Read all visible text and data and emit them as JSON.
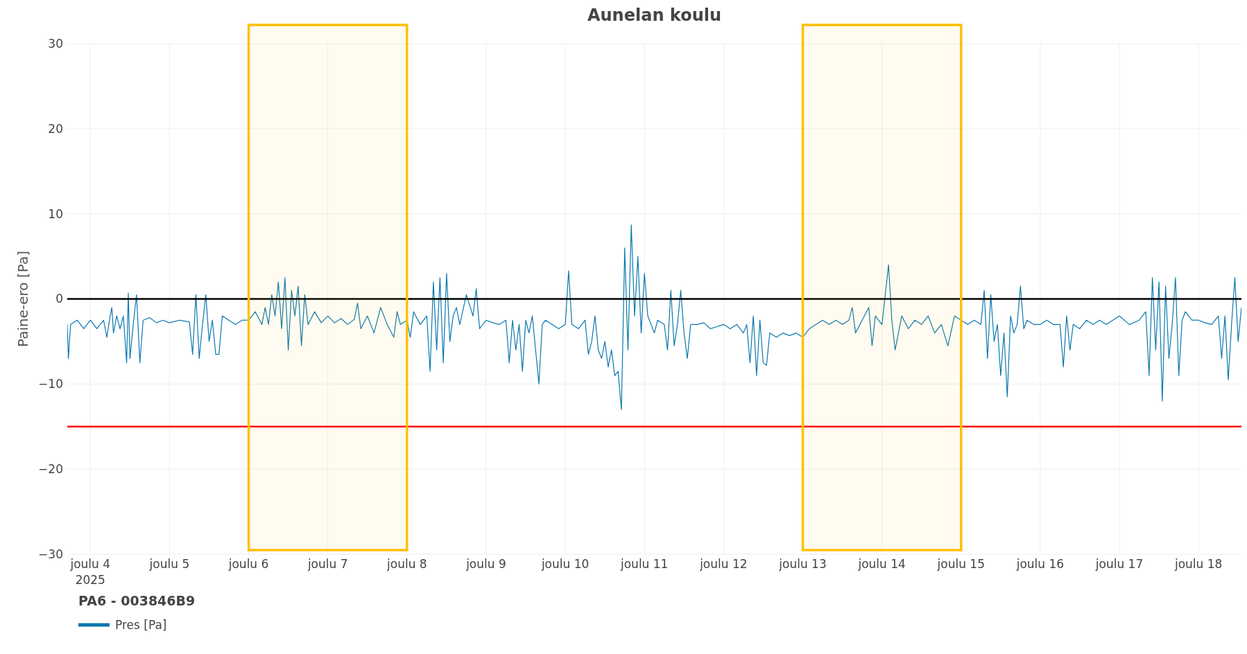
{
  "chart_data": {
    "type": "line",
    "title": "Aunelan koulu",
    "ylabel": "Paine-ero [Pa]",
    "legend_title": "PA6 - 003846B9",
    "legend": "bottom left",
    "grid": true,
    "xlim": [
      "2025-12-03T17:00",
      "2025-12-18T13:00"
    ],
    "xticks": [
      {
        "value": "2025-12-04",
        "label": "joulu 4\n2025"
      },
      {
        "value": "2025-12-05",
        "label": "joulu 5"
      },
      {
        "value": "2025-12-06",
        "label": "joulu 6"
      },
      {
        "value": "2025-12-07",
        "label": "joulu 7"
      },
      {
        "value": "2025-12-08",
        "label": "joulu 8"
      },
      {
        "value": "2025-12-09",
        "label": "joulu 9"
      },
      {
        "value": "2025-12-10",
        "label": "joulu 10"
      },
      {
        "value": "2025-12-11",
        "label": "joulu 11"
      },
      {
        "value": "2025-12-12",
        "label": "joulu 12"
      },
      {
        "value": "2025-12-13",
        "label": "joulu 13"
      },
      {
        "value": "2025-12-14",
        "label": "joulu 14"
      },
      {
        "value": "2025-12-15",
        "label": "joulu 15"
      },
      {
        "value": "2025-12-16",
        "label": "joulu 16"
      },
      {
        "value": "2025-12-17",
        "label": "joulu 17"
      },
      {
        "value": "2025-12-18",
        "label": "joulu 18"
      }
    ],
    "ylim": [
      -30,
      30
    ],
    "yticks": [
      -30,
      -20,
      -10,
      0,
      10,
      20,
      30
    ],
    "ref_lines": [
      {
        "axis": "y",
        "value": 0,
        "color": "#000000"
      },
      {
        "axis": "y",
        "value": -15,
        "color": "#ff0000"
      }
    ],
    "bands": [
      {
        "axis": "x",
        "from": "2025-12-06",
        "to": "2025-12-08",
        "color": "#ffc000"
      },
      {
        "axis": "x",
        "from": "2025-12-13",
        "to": "2025-12-15",
        "color": "#ffc000"
      }
    ],
    "series": [
      {
        "name": "Pres [Pa]",
        "color": "#0b78ad",
        "x": [
          "2025-12-03T17:00",
          "2025-12-03T17:20",
          "2025-12-03T18:00",
          "2025-12-03T20:00",
          "2025-12-03T22:00",
          "2025-12-04T00:00",
          "2025-12-04T02:00",
          "2025-12-04T04:00",
          "2025-12-04T05:00",
          "2025-12-04T06:00",
          "2025-12-04T06:30",
          "2025-12-04T07:00",
          "2025-12-04T08:00",
          "2025-12-04T09:00",
          "2025-12-04T10:00",
          "2025-12-04T11:00",
          "2025-12-04T11:30",
          "2025-12-04T12:00",
          "2025-12-04T13:00",
          "2025-12-04T14:00",
          "2025-12-04T15:00",
          "2025-12-04T16:00",
          "2025-12-04T18:00",
          "2025-12-04T20:00",
          "2025-12-04T22:00",
          "2025-12-05T00:00",
          "2025-12-05T03:00",
          "2025-12-05T06:00",
          "2025-12-05T07:00",
          "2025-12-05T08:00",
          "2025-12-05T09:00",
          "2025-12-05T10:00",
          "2025-12-05T11:00",
          "2025-12-05T12:00",
          "2025-12-05T13:00",
          "2025-12-05T14:00",
          "2025-12-05T15:00",
          "2025-12-05T16:00",
          "2025-12-05T18:00",
          "2025-12-05T20:00",
          "2025-12-05T22:00",
          "2025-12-06T00:00",
          "2025-12-06T02:00",
          "2025-12-06T04:00",
          "2025-12-06T05:00",
          "2025-12-06T06:00",
          "2025-12-06T07:00",
          "2025-12-06T08:00",
          "2025-12-06T09:00",
          "2025-12-06T10:00",
          "2025-12-06T11:00",
          "2025-12-06T12:00",
          "2025-12-06T13:00",
          "2025-12-06T14:00",
          "2025-12-06T15:00",
          "2025-12-06T16:00",
          "2025-12-06T17:00",
          "2025-12-06T18:00",
          "2025-12-06T20:00",
          "2025-12-06T22:00",
          "2025-12-07T00:00",
          "2025-12-07T02:00",
          "2025-12-07T04:00",
          "2025-12-07T06:00",
          "2025-12-07T08:00",
          "2025-12-07T09:00",
          "2025-12-07T10:00",
          "2025-12-07T12:00",
          "2025-12-07T14:00",
          "2025-12-07T16:00",
          "2025-12-07T18:00",
          "2025-12-07T20:00",
          "2025-12-07T21:00",
          "2025-12-07T22:00",
          "2025-12-08T00:00",
          "2025-12-08T01:00",
          "2025-12-08T02:00",
          "2025-12-08T04:00",
          "2025-12-08T06:00",
          "2025-12-08T07:00",
          "2025-12-08T08:00",
          "2025-12-08T09:00",
          "2025-12-08T10:00",
          "2025-12-08T11:00",
          "2025-12-08T12:00",
          "2025-12-08T13:00",
          "2025-12-08T14:00",
          "2025-12-08T15:00",
          "2025-12-08T16:00",
          "2025-12-08T18:00",
          "2025-12-08T20:00",
          "2025-12-08T21:00",
          "2025-12-08T22:00",
          "2025-12-09T00:00",
          "2025-12-09T02:00",
          "2025-12-09T04:00",
          "2025-12-09T06:00",
          "2025-12-09T07:00",
          "2025-12-09T08:00",
          "2025-12-09T09:00",
          "2025-12-09T10:00",
          "2025-12-09T11:00",
          "2025-12-09T12:00",
          "2025-12-09T13:00",
          "2025-12-09T14:00",
          "2025-12-09T16:00",
          "2025-12-09T17:00",
          "2025-12-09T18:00",
          "2025-12-09T20:00",
          "2025-12-09T22:00",
          "2025-12-10T00:00",
          "2025-12-10T01:00",
          "2025-12-10T02:00",
          "2025-12-10T04:00",
          "2025-12-10T06:00",
          "2025-12-10T07:00",
          "2025-12-10T08:00",
          "2025-12-10T09:00",
          "2025-12-10T10:00",
          "2025-12-10T11:00",
          "2025-12-10T12:00",
          "2025-12-10T13:00",
          "2025-12-10T14:00",
          "2025-12-10T15:00",
          "2025-12-10T16:00",
          "2025-12-10T17:00",
          "2025-12-10T17:30",
          "2025-12-10T18:00",
          "2025-12-10T19:00",
          "2025-12-10T20:00",
          "2025-12-10T21:00",
          "2025-12-10T22:00",
          "2025-12-10T23:00",
          "2025-12-11T00:00",
          "2025-12-11T01:00",
          "2025-12-11T02:00",
          "2025-12-11T03:00",
          "2025-12-11T04:00",
          "2025-12-11T06:00",
          "2025-12-11T07:00",
          "2025-12-11T08:00",
          "2025-12-11T09:00",
          "2025-12-11T10:00",
          "2025-12-11T11:00",
          "2025-12-11T12:00",
          "2025-12-11T13:00",
          "2025-12-11T14:00",
          "2025-12-11T16:00",
          "2025-12-11T18:00",
          "2025-12-11T20:00",
          "2025-12-12T00:00",
          "2025-12-12T02:00",
          "2025-12-12T04:00",
          "2025-12-12T06:00",
          "2025-12-12T07:00",
          "2025-12-12T08:00",
          "2025-12-12T09:00",
          "2025-12-12T10:00",
          "2025-12-12T11:00",
          "2025-12-12T12:00",
          "2025-12-12T13:00",
          "2025-12-12T14:00",
          "2025-12-12T16:00",
          "2025-12-12T18:00",
          "2025-12-12T20:00",
          "2025-12-12T22:00",
          "2025-12-13T00:00",
          "2025-12-13T02:00",
          "2025-12-13T04:00",
          "2025-12-13T06:00",
          "2025-12-13T08:00",
          "2025-12-13T10:00",
          "2025-12-13T12:00",
          "2025-12-13T14:00",
          "2025-12-13T15:00",
          "2025-12-13T16:00",
          "2025-12-13T18:00",
          "2025-12-13T20:00",
          "2025-12-13T21:00",
          "2025-12-13T22:00",
          "2025-12-14T00:00",
          "2025-12-14T02:00",
          "2025-12-14T03:00",
          "2025-12-14T04:00",
          "2025-12-14T06:00",
          "2025-12-14T08:00",
          "2025-12-14T10:00",
          "2025-12-14T12:00",
          "2025-12-14T14:00",
          "2025-12-14T16:00",
          "2025-12-14T18:00",
          "2025-12-14T20:00",
          "2025-12-14T22:00",
          "2025-12-15T00:00",
          "2025-12-15T02:00",
          "2025-12-15T04:00",
          "2025-12-15T06:00",
          "2025-12-15T07:00",
          "2025-12-15T08:00",
          "2025-12-15T09:00",
          "2025-12-15T10:00",
          "2025-12-15T11:00",
          "2025-12-15T12:00",
          "2025-12-15T13:00",
          "2025-12-15T14:00",
          "2025-12-15T15:00",
          "2025-12-15T16:00",
          "2025-12-15T17:00",
          "2025-12-15T18:00",
          "2025-12-15T19:00",
          "2025-12-15T20:00",
          "2025-12-15T22:00",
          "2025-12-16T00:00",
          "2025-12-16T02:00",
          "2025-12-16T04:00",
          "2025-12-16T06:00",
          "2025-12-16T07:00",
          "2025-12-16T08:00",
          "2025-12-16T09:00",
          "2025-12-16T10:00",
          "2025-12-16T12:00",
          "2025-12-16T14:00",
          "2025-12-16T16:00",
          "2025-12-16T18:00",
          "2025-12-16T20:00",
          "2025-12-16T22:00",
          "2025-12-17T00:00",
          "2025-12-17T03:00",
          "2025-12-17T06:00",
          "2025-12-17T08:00",
          "2025-12-17T09:00",
          "2025-12-17T10:00",
          "2025-12-17T11:00",
          "2025-12-17T12:00",
          "2025-12-17T13:00",
          "2025-12-17T14:00",
          "2025-12-17T15:00",
          "2025-12-17T16:00",
          "2025-12-17T17:00",
          "2025-12-17T18:00",
          "2025-12-17T19:00",
          "2025-12-17T20:00",
          "2025-12-17T22:00",
          "2025-12-18T00:00",
          "2025-12-18T02:00",
          "2025-12-18T04:00",
          "2025-12-18T06:00",
          "2025-12-18T07:00",
          "2025-12-18T08:00",
          "2025-12-18T09:00",
          "2025-12-18T10:00",
          "2025-12-18T11:00",
          "2025-12-18T12:00",
          "2025-12-18T13:00"
        ],
        "values": [
          -3,
          -7,
          -3,
          -2.5,
          -3.5,
          -2.5,
          -3.5,
          -2.5,
          -4.5,
          -2,
          -1,
          -4,
          -2,
          -3.5,
          -2,
          -7.5,
          0.7,
          -7,
          -3,
          0.5,
          -7.5,
          -2.5,
          -2.2,
          -2.8,
          -2.5,
          -2.8,
          -2.5,
          -2.7,
          -6.5,
          0.5,
          -7,
          -3,
          0.5,
          -5,
          -2.5,
          -6.5,
          -6.5,
          -2,
          -2.5,
          -3,
          -2.5,
          -2.5,
          -1.5,
          -3,
          -1,
          -3,
          0.5,
          -2,
          2,
          -3.5,
          2.5,
          -6,
          1,
          -2,
          1.5,
          -5.5,
          0.5,
          -3,
          -1.5,
          -2.8,
          -2,
          -2.8,
          -2.3,
          -3,
          -2.4,
          -0.5,
          -3.5,
          -2,
          -4,
          -1,
          -3,
          -4.5,
          -1.5,
          -3,
          -2.5,
          -4.5,
          -1.5,
          -3,
          -2,
          -8.5,
          2,
          -6,
          2.5,
          -7.5,
          3,
          -5,
          -2,
          -1,
          -3,
          0.5,
          -2,
          1.2,
          -3.5,
          -2.5,
          -2.8,
          -3,
          -2.5,
          -7.5,
          -2.5,
          -6,
          -3,
          -8.5,
          -2.5,
          -4,
          -2,
          -10,
          -3,
          -2.5,
          -3,
          -3.5,
          -3,
          3.3,
          -3,
          -3.5,
          -2.5,
          -6.5,
          -5,
          -2,
          -6,
          -7,
          -5,
          -8,
          -6,
          -9,
          -8.5,
          -13,
          -4,
          6,
          -6,
          8.7,
          -2,
          5,
          -4,
          3,
          -2,
          -3,
          -4,
          -2.5,
          -3,
          -6,
          1,
          -5.5,
          -3,
          1,
          -4,
          -7,
          -3,
          -3,
          -2.8,
          -3.5,
          -3,
          -3.5,
          -3,
          -4,
          -3,
          -7.5,
          -2,
          -9,
          -2.5,
          -7.5,
          -7.8,
          -4,
          -4.5,
          -4,
          -4.3,
          -4,
          -4.5,
          -3.5,
          -3,
          -2.5,
          -3,
          -2.5,
          -3,
          -2.5,
          -1,
          -4,
          -2.5,
          -1,
          -5.5,
          -2,
          -3,
          4,
          -2.5,
          -6,
          -2,
          -3.5,
          -2.5,
          -3,
          -2,
          -4,
          -3,
          -5.5,
          -2,
          -2.5,
          -3,
          -2.5,
          -3,
          1,
          -7,
          0.5,
          -5,
          -3,
          -9,
          -4,
          -11.5,
          -2,
          -4,
          -3,
          1.5,
          -3.5,
          -2.5,
          -3,
          -3,
          -2.5,
          -3,
          -3,
          -8,
          -2,
          -6,
          -3,
          -3.5,
          -2.5,
          -3,
          -2.5,
          -3,
          -2.5,
          -2,
          -3,
          -2.5,
          -1.5,
          -9,
          2.5,
          -6,
          2,
          -12,
          1.5,
          -7,
          -3,
          2.5,
          -9,
          -2.5,
          -1.5,
          -2.5,
          -2.5,
          -2.8,
          -3,
          -2,
          -7,
          -2,
          -9.5,
          -3,
          2.5,
          -5,
          -1
        ]
      }
    ]
  }
}
